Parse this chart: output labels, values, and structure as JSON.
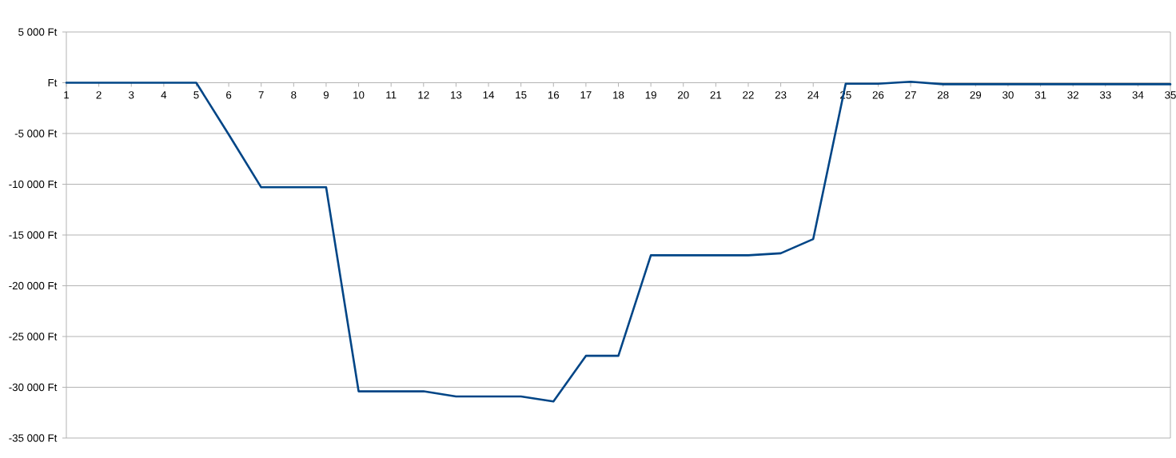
{
  "chart_data": {
    "type": "line",
    "categories": [
      "1",
      "2",
      "3",
      "4",
      "5",
      "6",
      "7",
      "8",
      "9",
      "10",
      "11",
      "12",
      "13",
      "14",
      "15",
      "16",
      "17",
      "18",
      "19",
      "20",
      "21",
      "22",
      "23",
      "24",
      "25",
      "26",
      "27",
      "28",
      "29",
      "30",
      "31",
      "32",
      "33",
      "34",
      "35"
    ],
    "values": [
      0,
      0,
      0,
      0,
      0,
      -5100,
      -10300,
      -10300,
      -10300,
      -30400,
      -30400,
      -30400,
      -30900,
      -30900,
      -30900,
      -31400,
      -26900,
      -26900,
      -17000,
      -17000,
      -17000,
      -17000,
      -16800,
      -15400,
      -100,
      -100,
      100,
      -150,
      -150,
      -150,
      -150,
      -150,
      -150,
      -150,
      -150
    ],
    "color": "#004586",
    "ylim": [
      -35000,
      5000
    ],
    "yticks": [
      {
        "value": -35000,
        "label": "-35 000 Ft"
      },
      {
        "value": -30000,
        "label": "-30 000 Ft"
      },
      {
        "value": -25000,
        "label": "-25 000 Ft"
      },
      {
        "value": -20000,
        "label": "-20 000 Ft"
      },
      {
        "value": -15000,
        "label": "-15 000 Ft"
      },
      {
        "value": -10000,
        "label": "-10 000 Ft"
      },
      {
        "value": -5000,
        "label": "-5 000 Ft"
      },
      {
        "value": 0,
        "label": "Ft"
      },
      {
        "value": 5000,
        "label": "5 000 Ft"
      }
    ],
    "grid": "y"
  }
}
